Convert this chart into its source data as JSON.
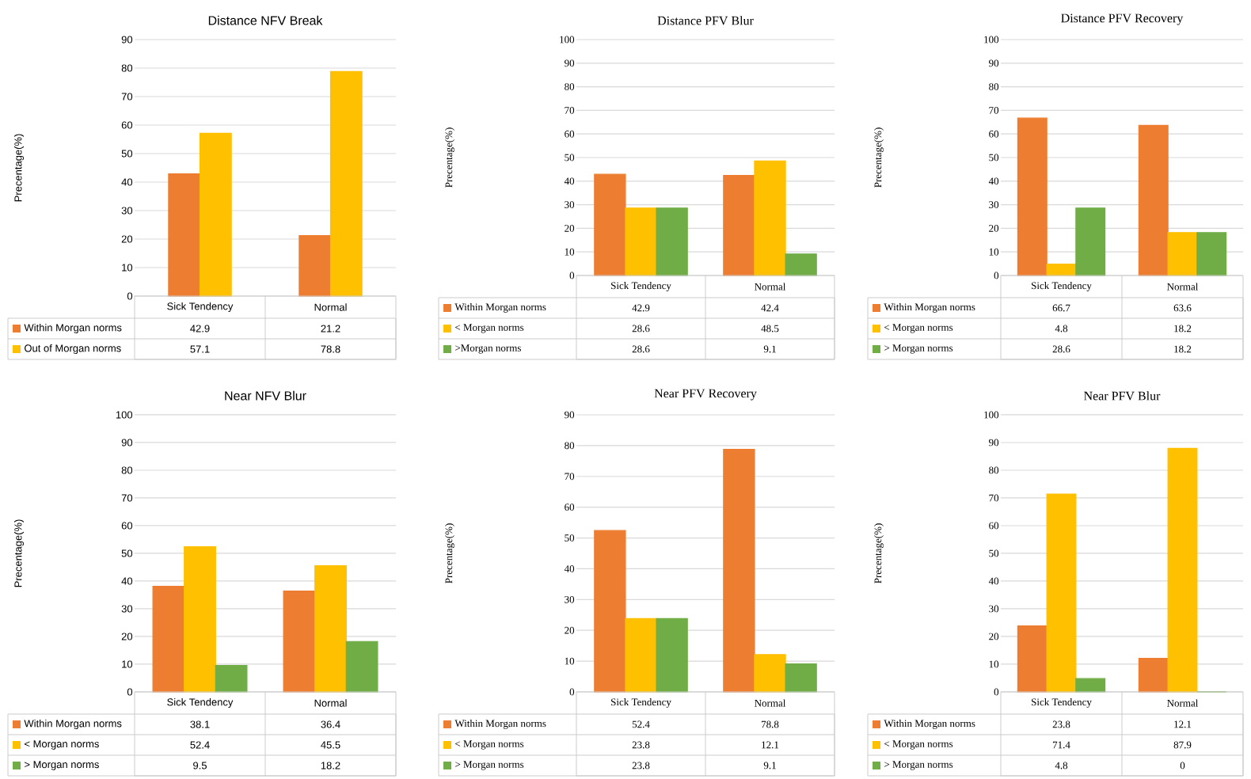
{
  "chart_data": [
    {
      "type": "bar",
      "title": "Distance NFV Break",
      "ylabel": "Precentage(%)",
      "categories": [
        "Sick Tendency",
        "Normal"
      ],
      "ylim": [
        0,
        90
      ],
      "yticks": [
        0,
        10,
        20,
        30,
        40,
        50,
        60,
        70,
        80,
        90
      ],
      "grid": "y",
      "legend": "bottom",
      "data_labels": true,
      "series": [
        {
          "name": "Within Morgan norms",
          "color": "#ed7d31",
          "values": [
            42.9,
            21.2
          ]
        },
        {
          "name": "Out of Morgan norms",
          "color": "#ffc000",
          "values": [
            57.1,
            78.8
          ]
        }
      ]
    },
    {
      "type": "bar",
      "title": "Distance PFV Blur",
      "ylabel": "Precentage(%)",
      "categories": [
        "Sick Tendency",
        "Normal"
      ],
      "ylim": [
        0,
        100
      ],
      "yticks": [
        0,
        10,
        20,
        30,
        40,
        50,
        60,
        70,
        80,
        90,
        100
      ],
      "grid": "y",
      "legend": "bottom",
      "data_labels": true,
      "series": [
        {
          "name": "Within Morgan norms",
          "color": "#ed7d31",
          "values": [
            42.9,
            42.4
          ]
        },
        {
          "name": "< Morgan norms",
          "color": "#ffc000",
          "values": [
            28.6,
            48.5
          ]
        },
        {
          "name": ">Morgan norms",
          "color": "#70ad47",
          "values": [
            28.6,
            9.1
          ]
        }
      ]
    },
    {
      "type": "bar",
      "title": "Distance PFV Recovery",
      "ylabel": "Precentage(%)",
      "categories": [
        "Sick Tendency",
        "Normal"
      ],
      "ylim": [
        0,
        100
      ],
      "yticks": [
        0,
        10,
        20,
        30,
        40,
        50,
        60,
        70,
        80,
        90,
        100
      ],
      "grid": "y",
      "legend": "bottom",
      "data_labels": true,
      "series": [
        {
          "name": "Within Morgan norms",
          "color": "#ed7d31",
          "values": [
            66.7,
            63.6
          ]
        },
        {
          "name": "< Morgan norms",
          "color": "#ffc000",
          "values": [
            4.8,
            18.2
          ]
        },
        {
          "name": "> Morgan norms",
          "color": "#70ad47",
          "values": [
            28.6,
            18.2
          ]
        }
      ]
    },
    {
      "type": "bar",
      "title": "Near NFV Blur",
      "ylabel": "Precentage(%)",
      "categories": [
        "Sick Tendency",
        "Normal"
      ],
      "ylim": [
        0,
        100
      ],
      "yticks": [
        0,
        10,
        20,
        30,
        40,
        50,
        60,
        70,
        80,
        90,
        100
      ],
      "grid": "y",
      "legend": "bottom",
      "data_labels": true,
      "series": [
        {
          "name": "Within Morgan norms",
          "color": "#ed7d31",
          "values": [
            38.1,
            36.4
          ]
        },
        {
          "name": "< Morgan norms",
          "color": "#ffc000",
          "values": [
            52.4,
            45.5
          ]
        },
        {
          "name": "> Morgan norms",
          "color": "#70ad47",
          "values": [
            9.5,
            18.2
          ]
        }
      ]
    },
    {
      "type": "bar",
      "title": "Near PFV Recovery",
      "ylabel": "Precentage(%)",
      "categories": [
        "Sick Tendency",
        "Normal"
      ],
      "ylim": [
        0,
        90
      ],
      "yticks": [
        0,
        10,
        20,
        30,
        40,
        50,
        60,
        70,
        80,
        90
      ],
      "grid": "y",
      "legend": "bottom",
      "data_labels": true,
      "series": [
        {
          "name": "Within Morgan norms",
          "color": "#ed7d31",
          "values": [
            52.4,
            78.8
          ]
        },
        {
          "name": "< Morgan norms",
          "color": "#ffc000",
          "values": [
            23.8,
            12.1
          ]
        },
        {
          "name": "> Morgan norms",
          "color": "#70ad47",
          "values": [
            23.8,
            9.1
          ]
        }
      ]
    },
    {
      "type": "bar",
      "title": "Near PFV Blur",
      "ylabel": "Precentage(%)",
      "categories": [
        "Sick Tendency",
        "Normal"
      ],
      "ylim": [
        0,
        100
      ],
      "yticks": [
        0,
        10,
        20,
        30,
        40,
        50,
        60,
        70,
        80,
        90,
        100
      ],
      "grid": "y",
      "legend": "bottom",
      "data_labels": true,
      "series": [
        {
          "name": "Within Morgan norms",
          "color": "#ed7d31",
          "values": [
            23.8,
            12.1
          ]
        },
        {
          "name": "< Morgan norms",
          "color": "#ffc000",
          "values": [
            71.4,
            87.9
          ]
        },
        {
          "name": "> Morgan norms",
          "color": "#70ad47",
          "values": [
            4.8,
            0
          ]
        }
      ]
    }
  ]
}
